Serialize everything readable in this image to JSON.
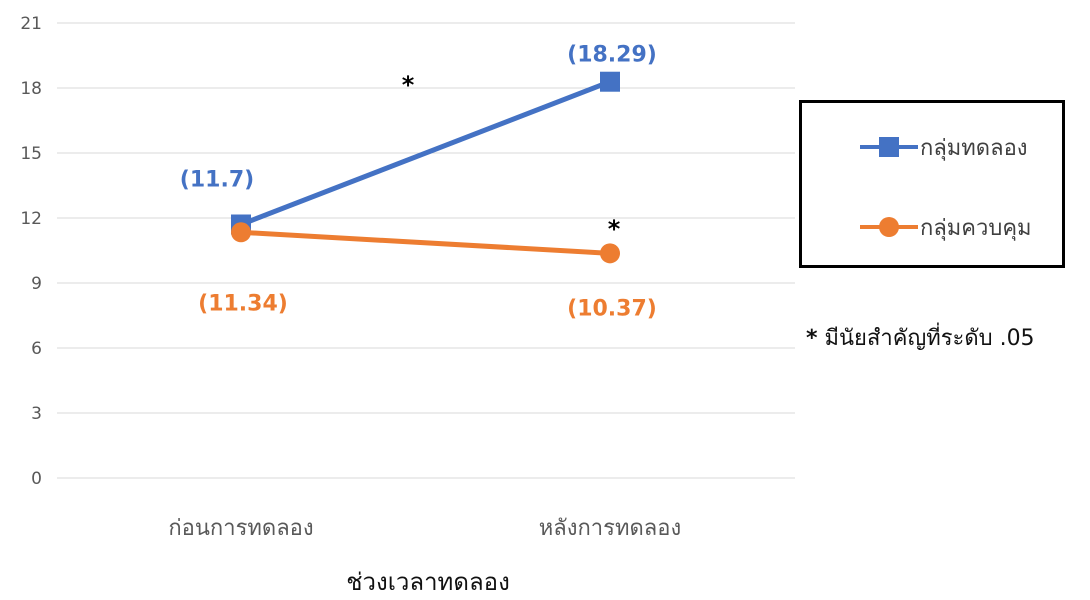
{
  "chart_data": {
    "type": "line",
    "categories": [
      "ก่อนการทดลอง",
      "หลังการทดลอง"
    ],
    "series": [
      {
        "name": "กลุ่มทดลอง",
        "values": [
          11.7,
          18.29
        ],
        "labels": [
          "(11.7)",
          "(18.29)"
        ],
        "color": "#4472C4",
        "marker": "square"
      },
      {
        "name": "กลุ่มควบคุม",
        "values": [
          11.34,
          10.37
        ],
        "labels": [
          "(11.34)",
          "(10.37)"
        ],
        "color": "#ED7D31",
        "marker": "circle"
      }
    ],
    "xlabel": "ช่วงเวลาทดลอง",
    "ylabel": "",
    "ylim": [
      0,
      21
    ],
    "yticks": [
      0,
      3,
      6,
      9,
      12,
      15,
      18,
      21
    ],
    "grid": true,
    "legend_position": "right",
    "annotations": [
      {
        "text": "*",
        "near": "experimental-slope"
      },
      {
        "text": "*",
        "near": "control-post"
      }
    ],
    "note": {
      "marker": "*",
      "text": "มีนัยสำคัญที่ระดับ .05"
    }
  }
}
